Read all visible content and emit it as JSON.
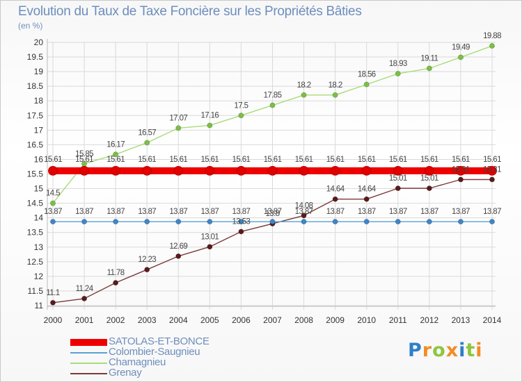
{
  "chart_data": {
    "type": "line",
    "title": "Evolution du Taux de Taxe Foncière sur les Propriétés Bâties",
    "subtitle": "(en %)",
    "x": [
      "2000",
      "2001",
      "2002",
      "2003",
      "2004",
      "2005",
      "2006",
      "2007",
      "2008",
      "2009",
      "2010",
      "2011",
      "2012",
      "2013",
      "2014"
    ],
    "yticks": [
      "11",
      "11.5",
      "12",
      "12.5",
      "13",
      "13.5",
      "14",
      "14.5",
      "15",
      "15.5",
      "16",
      "16.5",
      "17",
      "17.5",
      "18",
      "18.5",
      "19",
      "19.5",
      "20"
    ],
    "ylim": [
      11,
      20
    ],
    "grid": true,
    "legend_position": "bottom-left",
    "series": [
      {
        "name": "SATOLAS-ET-BONCE",
        "color": "#ee0000",
        "point_color": "#e00000",
        "values": [
          15.61,
          15.61,
          15.61,
          15.61,
          15.61,
          15.61,
          15.61,
          15.61,
          15.61,
          15.61,
          15.61,
          15.61,
          15.61,
          15.61,
          15.61
        ],
        "labels": [
          "15.61",
          "15.61",
          "15.61",
          "15.61",
          "15.61",
          "15.61",
          "15.61",
          "15.61",
          "15.61",
          "15.61",
          "15.61",
          "15.61",
          "15.61",
          "15.61",
          "15.61"
        ]
      },
      {
        "name": "Colombier-Saugnieu",
        "color": "#5a9fd4",
        "point_color": "#3f86c8",
        "values": [
          13.87,
          13.87,
          13.87,
          13.87,
          13.87,
          13.87,
          13.87,
          13.87,
          13.87,
          13.87,
          13.87,
          13.87,
          13.87,
          13.87,
          13.87
        ],
        "labels": [
          "13.87",
          "13.87",
          "13.87",
          "13.87",
          "13.87",
          "13.87",
          "13.87",
          "13.87",
          "13.87",
          "13.87",
          "13.87",
          "13.87",
          "13.87",
          "13.87",
          "13.87"
        ]
      },
      {
        "name": "Chamagnieu",
        "color": "#a8dc78",
        "point_color": "#7ac142",
        "values": [
          14.5,
          15.85,
          16.17,
          16.57,
          17.07,
          17.16,
          17.5,
          17.85,
          18.2,
          18.2,
          18.56,
          18.93,
          19.11,
          19.49,
          19.88
        ],
        "labels": [
          "14.5",
          "15.85",
          "16.17",
          "16.57",
          "17.07",
          "17.16",
          "17.5",
          "17.85",
          "18.2",
          "18.2",
          "18.56",
          "18.93",
          "19.11",
          "19.49",
          "19.88"
        ]
      },
      {
        "name": "Grenay",
        "color": "#7a3a3a",
        "point_color": "#5a1a1a",
        "values": [
          11.1,
          11.24,
          11.78,
          12.23,
          12.69,
          13.01,
          13.53,
          13.8,
          14.08,
          14.64,
          14.64,
          15.01,
          15.01,
          15.31,
          15.31
        ],
        "labels": [
          "11.1",
          "11.24",
          "11.78",
          "12.23",
          "12.69",
          "13.01",
          "13.53",
          "13.8",
          "14.08",
          "14.64",
          "14.64",
          "15.01",
          "15.01",
          "15.31",
          "15.31"
        ]
      }
    ]
  },
  "logo": {
    "text": "Proxiti",
    "letters": [
      {
        "ch": "P",
        "color": "#2f7fc6"
      },
      {
        "ch": "r",
        "color": "#f28c28"
      },
      {
        "ch": "o",
        "color": "#8cc63f"
      },
      {
        "ch": "x",
        "color": "#f28c28"
      },
      {
        "ch": "i",
        "color": "#2f7fc6"
      },
      {
        "ch": "t",
        "color": "#8cc63f"
      },
      {
        "ch": "i",
        "color": "#f28c28"
      }
    ]
  }
}
